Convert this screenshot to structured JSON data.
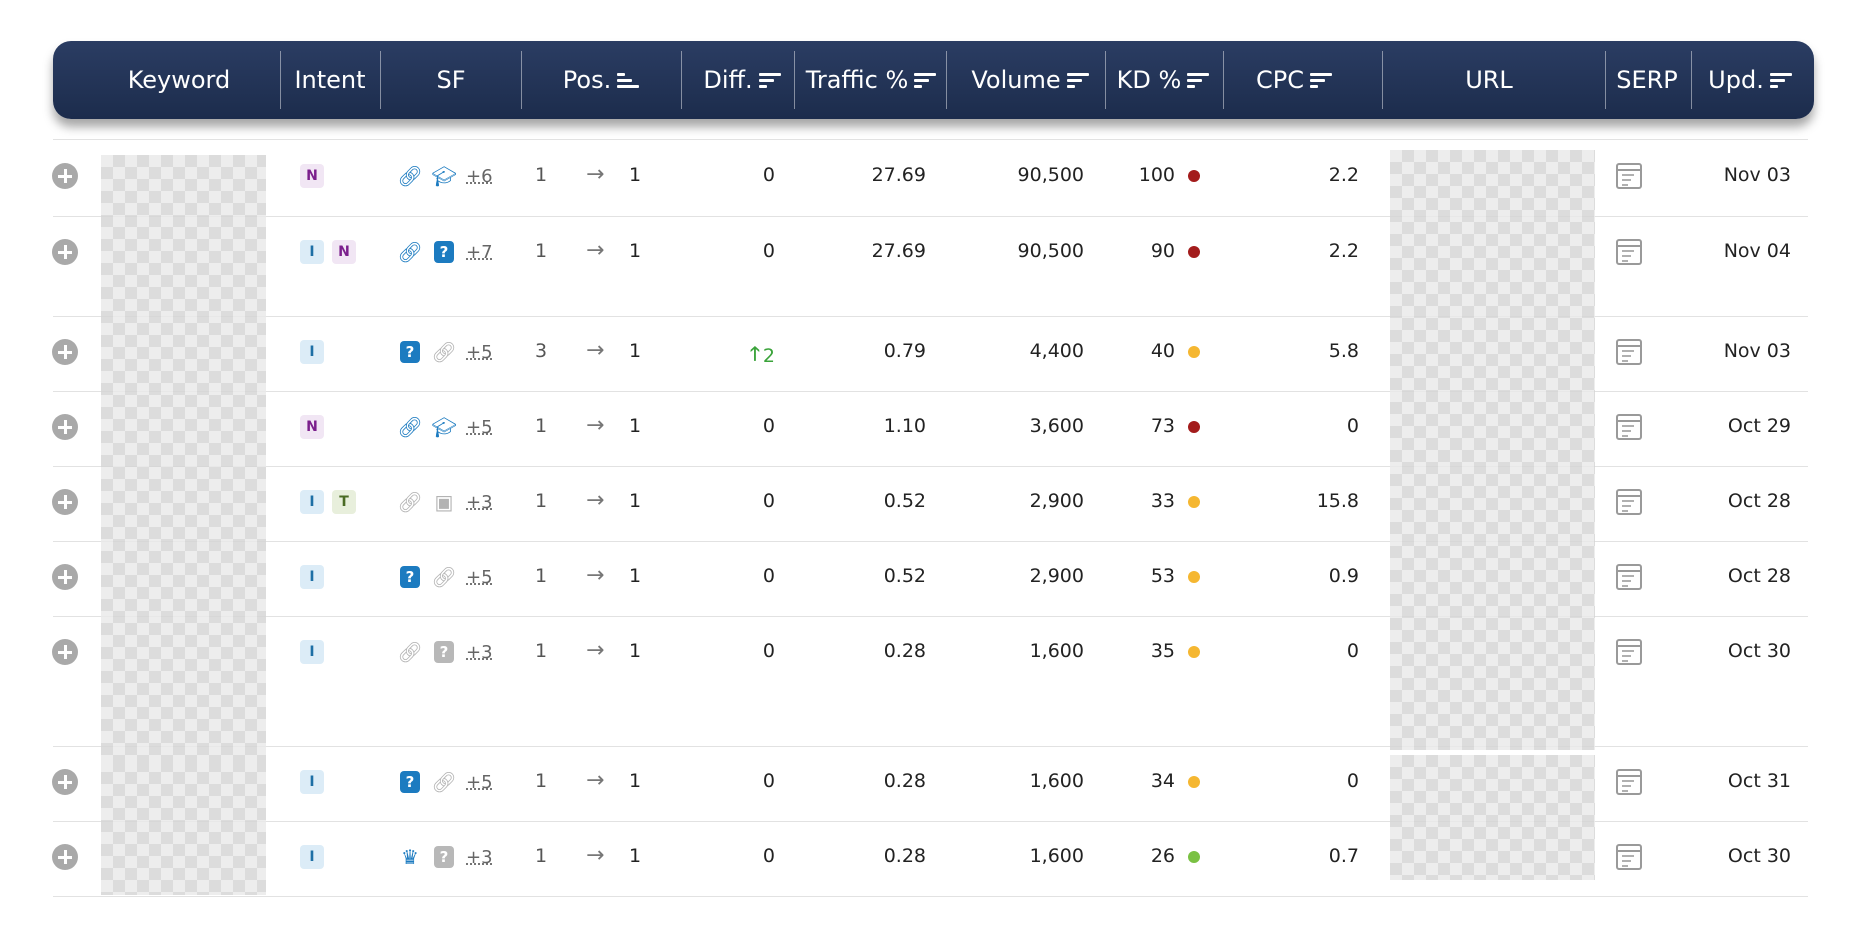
{
  "header": {
    "columns": [
      {
        "label": "Keyword",
        "sort": "none"
      },
      {
        "label": "Intent",
        "sort": "none"
      },
      {
        "label": "SF",
        "sort": "none"
      },
      {
        "label": "Pos.",
        "sort": "asc"
      },
      {
        "label": "Diff.",
        "sort": "desc"
      },
      {
        "label": "Traffic %",
        "sort": "desc"
      },
      {
        "label": "Volume",
        "sort": "desc"
      },
      {
        "label": "KD %",
        "sort": "desc"
      },
      {
        "label": "CPC",
        "sort": "desc"
      },
      {
        "label": "URL",
        "sort": "none"
      },
      {
        "label": "SERP",
        "sort": "none"
      },
      {
        "label": "Upd.",
        "sort": "desc"
      }
    ]
  },
  "colors": {
    "header_bg": "#1c2c4c",
    "kd_very_hard": "#a31c1c",
    "kd_medium": "#f5b731",
    "kd_easy": "#7ac143",
    "diff_up": "#3aa33a"
  },
  "rows": [
    {
      "intent": [
        "N"
      ],
      "sf": [
        {
          "icon": "link-icon",
          "tone": "blue"
        },
        {
          "icon": "graduation-cap-icon",
          "tone": "blue"
        }
      ],
      "sf_more": "+6",
      "pos_from": "1",
      "pos_to": "1",
      "diff": "0",
      "diff_dir": "none",
      "traffic": "27.69",
      "volume": "90,500",
      "kd": "100",
      "kd_color": "#a31c1c",
      "cpc": "2.2",
      "upd": "Nov 03"
    },
    {
      "intent": [
        "I",
        "N"
      ],
      "sf": [
        {
          "icon": "link-icon",
          "tone": "blue"
        },
        {
          "icon": "question-icon",
          "tone": "blue"
        }
      ],
      "sf_more": "+7",
      "pos_from": "1",
      "pos_to": "1",
      "diff": "0",
      "diff_dir": "none",
      "traffic": "27.69",
      "volume": "90,500",
      "kd": "90",
      "kd_color": "#a31c1c",
      "cpc": "2.2",
      "upd": "Nov 04"
    },
    {
      "intent": [
        "I"
      ],
      "sf": [
        {
          "icon": "question-icon",
          "tone": "blue"
        },
        {
          "icon": "link-icon",
          "tone": "grey"
        }
      ],
      "sf_more": "+5",
      "pos_from": "3",
      "pos_to": "1",
      "diff": "2",
      "diff_dir": "up",
      "traffic": "0.79",
      "volume": "4,400",
      "kd": "40",
      "kd_color": "#f5b731",
      "cpc": "5.8",
      "upd": "Nov 03"
    },
    {
      "intent": [
        "N"
      ],
      "sf": [
        {
          "icon": "link-icon",
          "tone": "blue"
        },
        {
          "icon": "graduation-cap-icon",
          "tone": "blue"
        }
      ],
      "sf_more": "+5",
      "pos_from": "1",
      "pos_to": "1",
      "diff": "0",
      "diff_dir": "none",
      "traffic": "1.10",
      "volume": "3,600",
      "kd": "73",
      "kd_color": "#a31c1c",
      "cpc": "0",
      "upd": "Oct 29"
    },
    {
      "intent": [
        "I",
        "T"
      ],
      "sf": [
        {
          "icon": "link-icon",
          "tone": "grey"
        },
        {
          "icon": "image-icon",
          "tone": "grey"
        }
      ],
      "sf_more": "+3",
      "pos_from": "1",
      "pos_to": "1",
      "diff": "0",
      "diff_dir": "none",
      "traffic": "0.52",
      "volume": "2,900",
      "kd": "33",
      "kd_color": "#f5b731",
      "cpc": "15.8",
      "upd": "Oct 28"
    },
    {
      "intent": [
        "I"
      ],
      "sf": [
        {
          "icon": "question-icon",
          "tone": "blue"
        },
        {
          "icon": "link-icon",
          "tone": "grey"
        }
      ],
      "sf_more": "+5",
      "pos_from": "1",
      "pos_to": "1",
      "diff": "0",
      "diff_dir": "none",
      "traffic": "0.52",
      "volume": "2,900",
      "kd": "53",
      "kd_color": "#f5b731",
      "cpc": "0.9",
      "upd": "Oct 28"
    },
    {
      "intent": [
        "I"
      ],
      "sf": [
        {
          "icon": "link-icon",
          "tone": "grey"
        },
        {
          "icon": "question-icon",
          "tone": "grey"
        }
      ],
      "sf_more": "+3",
      "pos_from": "1",
      "pos_to": "1",
      "diff": "0",
      "diff_dir": "none",
      "traffic": "0.28",
      "volume": "1,600",
      "kd": "35",
      "kd_color": "#f5b731",
      "cpc": "0",
      "upd": "Oct 30"
    },
    {
      "intent": [
        "I"
      ],
      "sf": [
        {
          "icon": "question-icon",
          "tone": "blue"
        },
        {
          "icon": "link-icon",
          "tone": "grey"
        }
      ],
      "sf_more": "+5",
      "pos_from": "1",
      "pos_to": "1",
      "diff": "0",
      "diff_dir": "none",
      "traffic": "0.28",
      "volume": "1,600",
      "kd": "34",
      "kd_color": "#f5b731",
      "cpc": "0",
      "upd": "Oct 31"
    },
    {
      "intent": [
        "I"
      ],
      "sf": [
        {
          "icon": "crown-icon",
          "tone": "blue"
        },
        {
          "icon": "question-icon",
          "tone": "grey"
        }
      ],
      "sf_more": "+3",
      "pos_from": "1",
      "pos_to": "1",
      "diff": "0",
      "diff_dir": "none",
      "traffic": "0.28",
      "volume": "1,600",
      "kd": "26",
      "kd_color": "#7ac143",
      "cpc": "0.7",
      "upd": "Oct 30"
    }
  ]
}
